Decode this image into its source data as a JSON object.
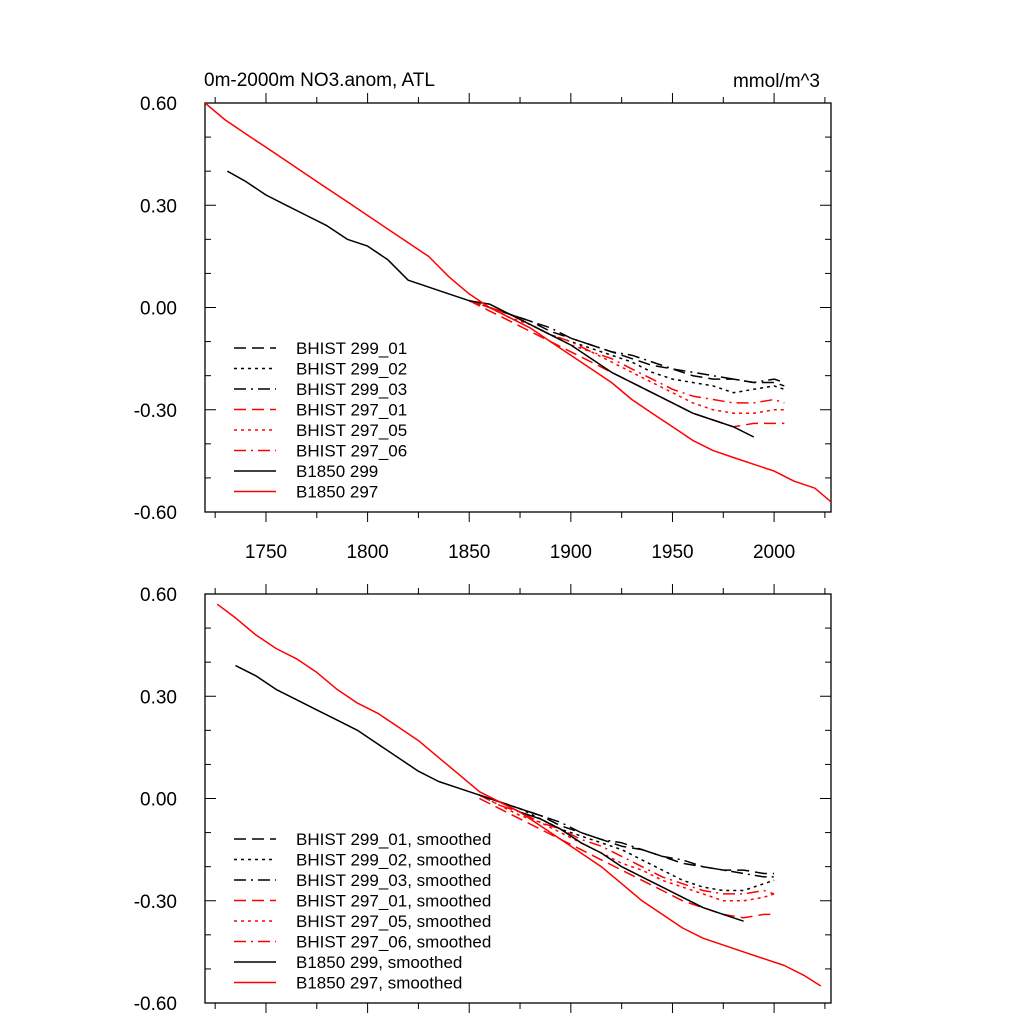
{
  "chart_data": [
    {
      "type": "line",
      "title": "0m-2000m NO3.anom, ATL",
      "units": "mmol/m^3",
      "xlim": [
        1720,
        2028
      ],
      "ylim": [
        -0.6,
        0.6
      ],
      "x_ticks": [
        "1750",
        "1800",
        "1850",
        "1900",
        "1950",
        "2000"
      ],
      "y_ticks": [
        "0.60",
        "0.30",
        "0.00",
        "-0.30",
        "-0.60"
      ],
      "x_tick_values": [
        1750,
        1800,
        1850,
        1900,
        1950,
        2000
      ],
      "y_tick_values": [
        0.6,
        0.3,
        0.0,
        -0.3,
        -0.6
      ],
      "show_x_tick_labels": true,
      "legend_position": "lower-left",
      "series": [
        {
          "name": "BHIST 299_01",
          "color": "#000000",
          "dash": "dash",
          "x": [
            1850,
            1860,
            1870,
            1880,
            1890,
            1900,
            1910,
            1920,
            1930,
            1940,
            1950,
            1960,
            1970,
            1980,
            1990,
            2000,
            2005
          ],
          "y": [
            0.02,
            0.0,
            -0.02,
            -0.04,
            -0.07,
            -0.09,
            -0.11,
            -0.13,
            -0.15,
            -0.17,
            -0.18,
            -0.2,
            -0.21,
            -0.21,
            -0.22,
            -0.22,
            -0.23
          ]
        },
        {
          "name": "BHIST 299_02",
          "color": "#000000",
          "dash": "dot",
          "x": [
            1850,
            1860,
            1870,
            1880,
            1890,
            1900,
            1910,
            1920,
            1930,
            1940,
            1950,
            1960,
            1970,
            1980,
            1990,
            2000,
            2005
          ],
          "y": [
            0.02,
            0.0,
            -0.02,
            -0.05,
            -0.08,
            -0.1,
            -0.12,
            -0.14,
            -0.16,
            -0.19,
            -0.21,
            -0.22,
            -0.23,
            -0.25,
            -0.24,
            -0.23,
            -0.24
          ]
        },
        {
          "name": "BHIST 299_03",
          "color": "#000000",
          "dash": "dashdot",
          "x": [
            1850,
            1860,
            1870,
            1880,
            1890,
            1900,
            1910,
            1920,
            1930,
            1940,
            1950,
            1960,
            1970,
            1980,
            1990,
            2000,
            2005
          ],
          "y": [
            0.02,
            0.0,
            -0.02,
            -0.04,
            -0.06,
            -0.09,
            -0.11,
            -0.13,
            -0.14,
            -0.16,
            -0.18,
            -0.19,
            -0.2,
            -0.21,
            -0.22,
            -0.21,
            -0.22
          ]
        },
        {
          "name": "BHIST 297_01",
          "color": "#ff0000",
          "dash": "dash",
          "x": [
            1850,
            1860,
            1870,
            1880,
            1890,
            1900,
            1910,
            1920,
            1930,
            1940,
            1950,
            1960,
            1970,
            1980,
            1990,
            2000,
            2005
          ],
          "y": [
            0.02,
            -0.01,
            -0.04,
            -0.07,
            -0.1,
            -0.13,
            -0.16,
            -0.19,
            -0.22,
            -0.25,
            -0.28,
            -0.31,
            -0.33,
            -0.35,
            -0.34,
            -0.34,
            -0.34
          ]
        },
        {
          "name": "BHIST 297_05",
          "color": "#ff0000",
          "dash": "dot",
          "x": [
            1850,
            1860,
            1870,
            1880,
            1890,
            1900,
            1910,
            1920,
            1930,
            1940,
            1950,
            1960,
            1970,
            1980,
            1990,
            2000,
            2005
          ],
          "y": [
            0.02,
            0.0,
            -0.03,
            -0.05,
            -0.08,
            -0.11,
            -0.13,
            -0.16,
            -0.19,
            -0.22,
            -0.25,
            -0.28,
            -0.3,
            -0.31,
            -0.31,
            -0.3,
            -0.3
          ]
        },
        {
          "name": "BHIST 297_06",
          "color": "#ff0000",
          "dash": "dashdot",
          "x": [
            1850,
            1860,
            1870,
            1880,
            1890,
            1900,
            1910,
            1920,
            1930,
            1940,
            1950,
            1960,
            1970,
            1980,
            1990,
            2000,
            2005
          ],
          "y": [
            0.02,
            0.0,
            -0.02,
            -0.05,
            -0.08,
            -0.1,
            -0.13,
            -0.15,
            -0.18,
            -0.21,
            -0.24,
            -0.26,
            -0.27,
            -0.28,
            -0.28,
            -0.27,
            -0.28
          ]
        },
        {
          "name": "B1850 299",
          "color": "#000000",
          "dash": "solid",
          "x": [
            1731,
            1740,
            1750,
            1760,
            1770,
            1780,
            1790,
            1800,
            1810,
            1820,
            1830,
            1840,
            1850,
            1860,
            1870,
            1880,
            1890,
            1900,
            1910,
            1920,
            1930,
            1940,
            1950,
            1960,
            1970,
            1980,
            1990
          ],
          "y": [
            0.4,
            0.37,
            0.33,
            0.3,
            0.27,
            0.24,
            0.2,
            0.18,
            0.14,
            0.08,
            0.06,
            0.04,
            0.02,
            0.01,
            -0.02,
            -0.05,
            -0.08,
            -0.11,
            -0.15,
            -0.19,
            -0.22,
            -0.25,
            -0.28,
            -0.31,
            -0.33,
            -0.35,
            -0.38
          ]
        },
        {
          "name": "B1850 297",
          "color": "#ff0000",
          "dash": "solid",
          "x": [
            1720,
            1730,
            1740,
            1750,
            1760,
            1770,
            1780,
            1790,
            1800,
            1810,
            1820,
            1830,
            1840,
            1850,
            1860,
            1870,
            1880,
            1890,
            1900,
            1910,
            1920,
            1930,
            1940,
            1950,
            1960,
            1970,
            1980,
            1990,
            2000,
            2010,
            2020,
            2028
          ],
          "y": [
            0.6,
            0.55,
            0.51,
            0.47,
            0.43,
            0.39,
            0.35,
            0.31,
            0.27,
            0.23,
            0.19,
            0.15,
            0.09,
            0.04,
            0.0,
            -0.03,
            -0.06,
            -0.1,
            -0.14,
            -0.18,
            -0.22,
            -0.27,
            -0.31,
            -0.35,
            -0.39,
            -0.42,
            -0.44,
            -0.46,
            -0.48,
            -0.51,
            -0.53,
            -0.57
          ]
        }
      ]
    },
    {
      "type": "line",
      "title": "",
      "units": "",
      "xlim": [
        1720,
        2028
      ],
      "ylim": [
        -0.6,
        0.6
      ],
      "x_ticks": [
        "",
        "",
        "",
        "",
        "",
        ""
      ],
      "y_ticks": [
        "0.60",
        "0.30",
        "0.00",
        "-0.30",
        "-0.60"
      ],
      "x_tick_values": [
        1750,
        1800,
        1850,
        1900,
        1950,
        2000
      ],
      "y_tick_values": [
        0.6,
        0.3,
        0.0,
        -0.3,
        -0.6
      ],
      "show_x_tick_labels": false,
      "legend_position": "lower-left",
      "series": [
        {
          "name": "BHIST 299_01, smoothed",
          "color": "#000000",
          "dash": "dash",
          "x": [
            1855,
            1865,
            1875,
            1885,
            1895,
            1905,
            1915,
            1925,
            1935,
            1945,
            1955,
            1965,
            1975,
            1985,
            1995,
            2000
          ],
          "y": [
            0.01,
            -0.01,
            -0.03,
            -0.05,
            -0.08,
            -0.1,
            -0.12,
            -0.14,
            -0.15,
            -0.17,
            -0.19,
            -0.2,
            -0.21,
            -0.21,
            -0.22,
            -0.22
          ]
        },
        {
          "name": "BHIST 299_02, smoothed",
          "color": "#000000",
          "dash": "dot",
          "x": [
            1855,
            1865,
            1875,
            1885,
            1895,
            1905,
            1915,
            1925,
            1935,
            1945,
            1955,
            1965,
            1975,
            1985,
            1995,
            2000
          ],
          "y": [
            0.01,
            -0.01,
            -0.03,
            -0.06,
            -0.09,
            -0.11,
            -0.13,
            -0.15,
            -0.18,
            -0.21,
            -0.24,
            -0.26,
            -0.27,
            -0.27,
            -0.25,
            -0.24
          ]
        },
        {
          "name": "BHIST 299_03, smoothed",
          "color": "#000000",
          "dash": "dashdot",
          "x": [
            1855,
            1865,
            1875,
            1885,
            1895,
            1905,
            1915,
            1925,
            1935,
            1945,
            1955,
            1965,
            1975,
            1985,
            1995,
            2000
          ],
          "y": [
            0.01,
            -0.01,
            -0.03,
            -0.05,
            -0.07,
            -0.1,
            -0.12,
            -0.13,
            -0.15,
            -0.17,
            -0.18,
            -0.2,
            -0.21,
            -0.22,
            -0.23,
            -0.23
          ]
        },
        {
          "name": "BHIST 297_01, smoothed",
          "color": "#ff0000",
          "dash": "dash",
          "x": [
            1855,
            1865,
            1875,
            1885,
            1895,
            1905,
            1915,
            1925,
            1935,
            1945,
            1955,
            1965,
            1975,
            1985,
            1995,
            2000
          ],
          "y": [
            0.0,
            -0.03,
            -0.06,
            -0.09,
            -0.12,
            -0.15,
            -0.18,
            -0.21,
            -0.24,
            -0.27,
            -0.3,
            -0.32,
            -0.34,
            -0.35,
            -0.34,
            -0.34
          ]
        },
        {
          "name": "BHIST 297_05, smoothed",
          "color": "#ff0000",
          "dash": "dot",
          "x": [
            1855,
            1865,
            1875,
            1885,
            1895,
            1905,
            1915,
            1925,
            1935,
            1945,
            1955,
            1965,
            1975,
            1985,
            1995,
            2000
          ],
          "y": [
            0.01,
            -0.02,
            -0.05,
            -0.07,
            -0.1,
            -0.13,
            -0.16,
            -0.19,
            -0.21,
            -0.24,
            -0.26,
            -0.28,
            -0.3,
            -0.3,
            -0.29,
            -0.28
          ]
        },
        {
          "name": "BHIST 297_06, smoothed",
          "color": "#ff0000",
          "dash": "dashdot",
          "x": [
            1855,
            1865,
            1875,
            1885,
            1895,
            1905,
            1915,
            1925,
            1935,
            1945,
            1955,
            1965,
            1975,
            1985,
            1995,
            2000
          ],
          "y": [
            0.01,
            -0.02,
            -0.04,
            -0.07,
            -0.09,
            -0.12,
            -0.14,
            -0.17,
            -0.2,
            -0.23,
            -0.25,
            -0.27,
            -0.28,
            -0.28,
            -0.27,
            -0.28
          ]
        },
        {
          "name": "B1850 299, smoothed",
          "color": "#000000",
          "dash": "solid",
          "x": [
            1735,
            1745,
            1755,
            1765,
            1775,
            1785,
            1795,
            1805,
            1815,
            1825,
            1835,
            1845,
            1855,
            1865,
            1875,
            1885,
            1895,
            1905,
            1915,
            1925,
            1935,
            1945,
            1955,
            1965,
            1975,
            1985
          ],
          "y": [
            0.39,
            0.36,
            0.32,
            0.29,
            0.26,
            0.23,
            0.2,
            0.16,
            0.12,
            0.08,
            0.05,
            0.03,
            0.01,
            -0.01,
            -0.04,
            -0.06,
            -0.09,
            -0.13,
            -0.16,
            -0.2,
            -0.23,
            -0.26,
            -0.29,
            -0.32,
            -0.34,
            -0.36
          ]
        },
        {
          "name": "B1850 297, smoothed",
          "color": "#ff0000",
          "dash": "solid",
          "x": [
            1726,
            1735,
            1745,
            1755,
            1765,
            1775,
            1785,
            1795,
            1805,
            1815,
            1825,
            1835,
            1845,
            1855,
            1865,
            1875,
            1885,
            1895,
            1905,
            1915,
            1925,
            1935,
            1945,
            1955,
            1965,
            1975,
            1985,
            1995,
            2005,
            2015,
            2023
          ],
          "y": [
            0.57,
            0.53,
            0.48,
            0.44,
            0.41,
            0.37,
            0.32,
            0.28,
            0.25,
            0.21,
            0.17,
            0.12,
            0.07,
            0.02,
            -0.01,
            -0.04,
            -0.08,
            -0.12,
            -0.16,
            -0.2,
            -0.25,
            -0.3,
            -0.34,
            -0.38,
            -0.41,
            -0.43,
            -0.45,
            -0.47,
            -0.49,
            -0.52,
            -0.55
          ]
        }
      ]
    }
  ]
}
